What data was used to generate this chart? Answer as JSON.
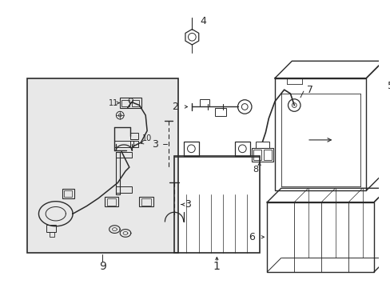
{
  "background_color": "#ffffff",
  "line_color": "#2a2a2a",
  "box_bg": "#e8e8e8",
  "lw": 0.9
}
